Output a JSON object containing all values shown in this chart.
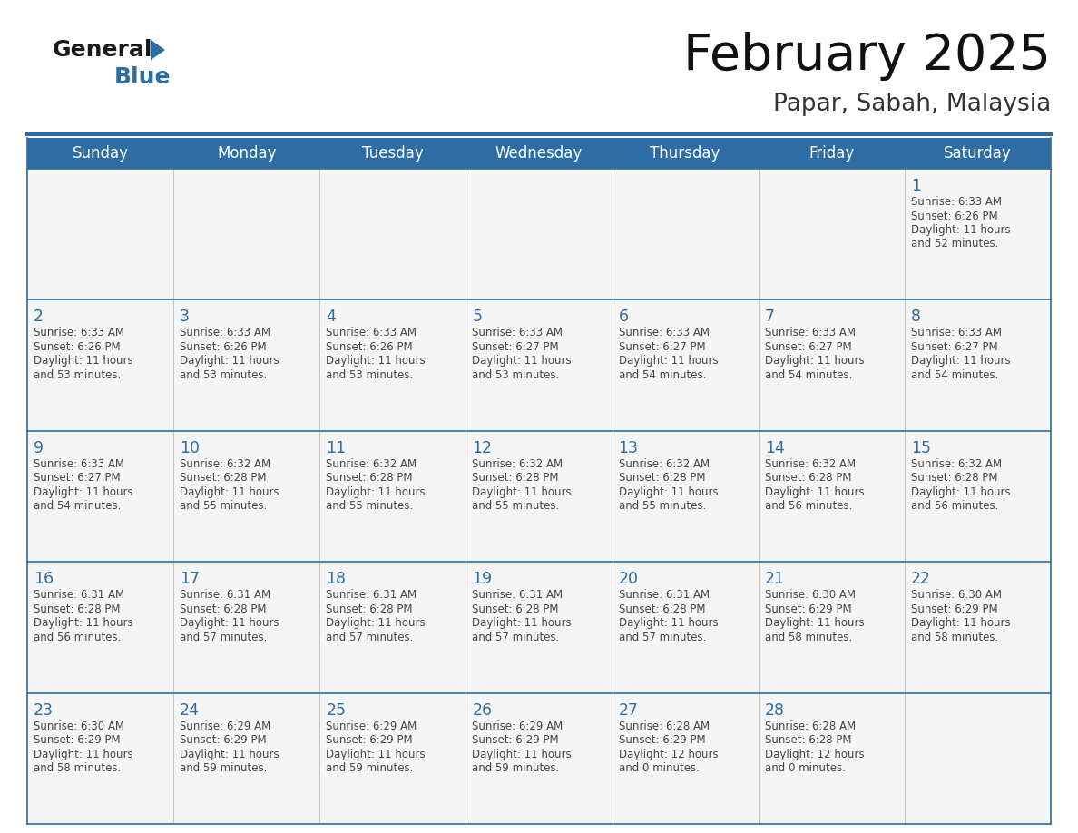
{
  "title": "February 2025",
  "subtitle": "Papar, Sabah, Malaysia",
  "header_color": "#2E6DA4",
  "header_text_color": "#FFFFFF",
  "bg_color": "#FFFFFF",
  "cell_bg_color": "#F5F5F5",
  "border_color": "#2E6DA4",
  "day_number_color": "#2E6DA4",
  "text_color": "#444444",
  "days_of_week": [
    "Sunday",
    "Monday",
    "Tuesday",
    "Wednesday",
    "Thursday",
    "Friday",
    "Saturday"
  ],
  "calendar_data": [
    [
      {
        "day": null,
        "info": null
      },
      {
        "day": null,
        "info": null
      },
      {
        "day": null,
        "info": null
      },
      {
        "day": null,
        "info": null
      },
      {
        "day": null,
        "info": null
      },
      {
        "day": null,
        "info": null
      },
      {
        "day": "1",
        "info": "Sunrise: 6:33 AM\nSunset: 6:26 PM\nDaylight: 11 hours\nand 52 minutes."
      }
    ],
    [
      {
        "day": "2",
        "info": "Sunrise: 6:33 AM\nSunset: 6:26 PM\nDaylight: 11 hours\nand 53 minutes."
      },
      {
        "day": "3",
        "info": "Sunrise: 6:33 AM\nSunset: 6:26 PM\nDaylight: 11 hours\nand 53 minutes."
      },
      {
        "day": "4",
        "info": "Sunrise: 6:33 AM\nSunset: 6:26 PM\nDaylight: 11 hours\nand 53 minutes."
      },
      {
        "day": "5",
        "info": "Sunrise: 6:33 AM\nSunset: 6:27 PM\nDaylight: 11 hours\nand 53 minutes."
      },
      {
        "day": "6",
        "info": "Sunrise: 6:33 AM\nSunset: 6:27 PM\nDaylight: 11 hours\nand 54 minutes."
      },
      {
        "day": "7",
        "info": "Sunrise: 6:33 AM\nSunset: 6:27 PM\nDaylight: 11 hours\nand 54 minutes."
      },
      {
        "day": "8",
        "info": "Sunrise: 6:33 AM\nSunset: 6:27 PM\nDaylight: 11 hours\nand 54 minutes."
      }
    ],
    [
      {
        "day": "9",
        "info": "Sunrise: 6:33 AM\nSunset: 6:27 PM\nDaylight: 11 hours\nand 54 minutes."
      },
      {
        "day": "10",
        "info": "Sunrise: 6:32 AM\nSunset: 6:28 PM\nDaylight: 11 hours\nand 55 minutes."
      },
      {
        "day": "11",
        "info": "Sunrise: 6:32 AM\nSunset: 6:28 PM\nDaylight: 11 hours\nand 55 minutes."
      },
      {
        "day": "12",
        "info": "Sunrise: 6:32 AM\nSunset: 6:28 PM\nDaylight: 11 hours\nand 55 minutes."
      },
      {
        "day": "13",
        "info": "Sunrise: 6:32 AM\nSunset: 6:28 PM\nDaylight: 11 hours\nand 55 minutes."
      },
      {
        "day": "14",
        "info": "Sunrise: 6:32 AM\nSunset: 6:28 PM\nDaylight: 11 hours\nand 56 minutes."
      },
      {
        "day": "15",
        "info": "Sunrise: 6:32 AM\nSunset: 6:28 PM\nDaylight: 11 hours\nand 56 minutes."
      }
    ],
    [
      {
        "day": "16",
        "info": "Sunrise: 6:31 AM\nSunset: 6:28 PM\nDaylight: 11 hours\nand 56 minutes."
      },
      {
        "day": "17",
        "info": "Sunrise: 6:31 AM\nSunset: 6:28 PM\nDaylight: 11 hours\nand 57 minutes."
      },
      {
        "day": "18",
        "info": "Sunrise: 6:31 AM\nSunset: 6:28 PM\nDaylight: 11 hours\nand 57 minutes."
      },
      {
        "day": "19",
        "info": "Sunrise: 6:31 AM\nSunset: 6:28 PM\nDaylight: 11 hours\nand 57 minutes."
      },
      {
        "day": "20",
        "info": "Sunrise: 6:31 AM\nSunset: 6:28 PM\nDaylight: 11 hours\nand 57 minutes."
      },
      {
        "day": "21",
        "info": "Sunrise: 6:30 AM\nSunset: 6:29 PM\nDaylight: 11 hours\nand 58 minutes."
      },
      {
        "day": "22",
        "info": "Sunrise: 6:30 AM\nSunset: 6:29 PM\nDaylight: 11 hours\nand 58 minutes."
      }
    ],
    [
      {
        "day": "23",
        "info": "Sunrise: 6:30 AM\nSunset: 6:29 PM\nDaylight: 11 hours\nand 58 minutes."
      },
      {
        "day": "24",
        "info": "Sunrise: 6:29 AM\nSunset: 6:29 PM\nDaylight: 11 hours\nand 59 minutes."
      },
      {
        "day": "25",
        "info": "Sunrise: 6:29 AM\nSunset: 6:29 PM\nDaylight: 11 hours\nand 59 minutes."
      },
      {
        "day": "26",
        "info": "Sunrise: 6:29 AM\nSunset: 6:29 PM\nDaylight: 11 hours\nand 59 minutes."
      },
      {
        "day": "27",
        "info": "Sunrise: 6:28 AM\nSunset: 6:29 PM\nDaylight: 12 hours\nand 0 minutes."
      },
      {
        "day": "28",
        "info": "Sunrise: 6:28 AM\nSunset: 6:28 PM\nDaylight: 12 hours\nand 0 minutes."
      },
      {
        "day": null,
        "info": null
      }
    ]
  ],
  "logo_general_color": "#1a1a1a",
  "logo_blue_color": "#2E6DA4",
  "logo_triangle_color": "#2E6DA4"
}
